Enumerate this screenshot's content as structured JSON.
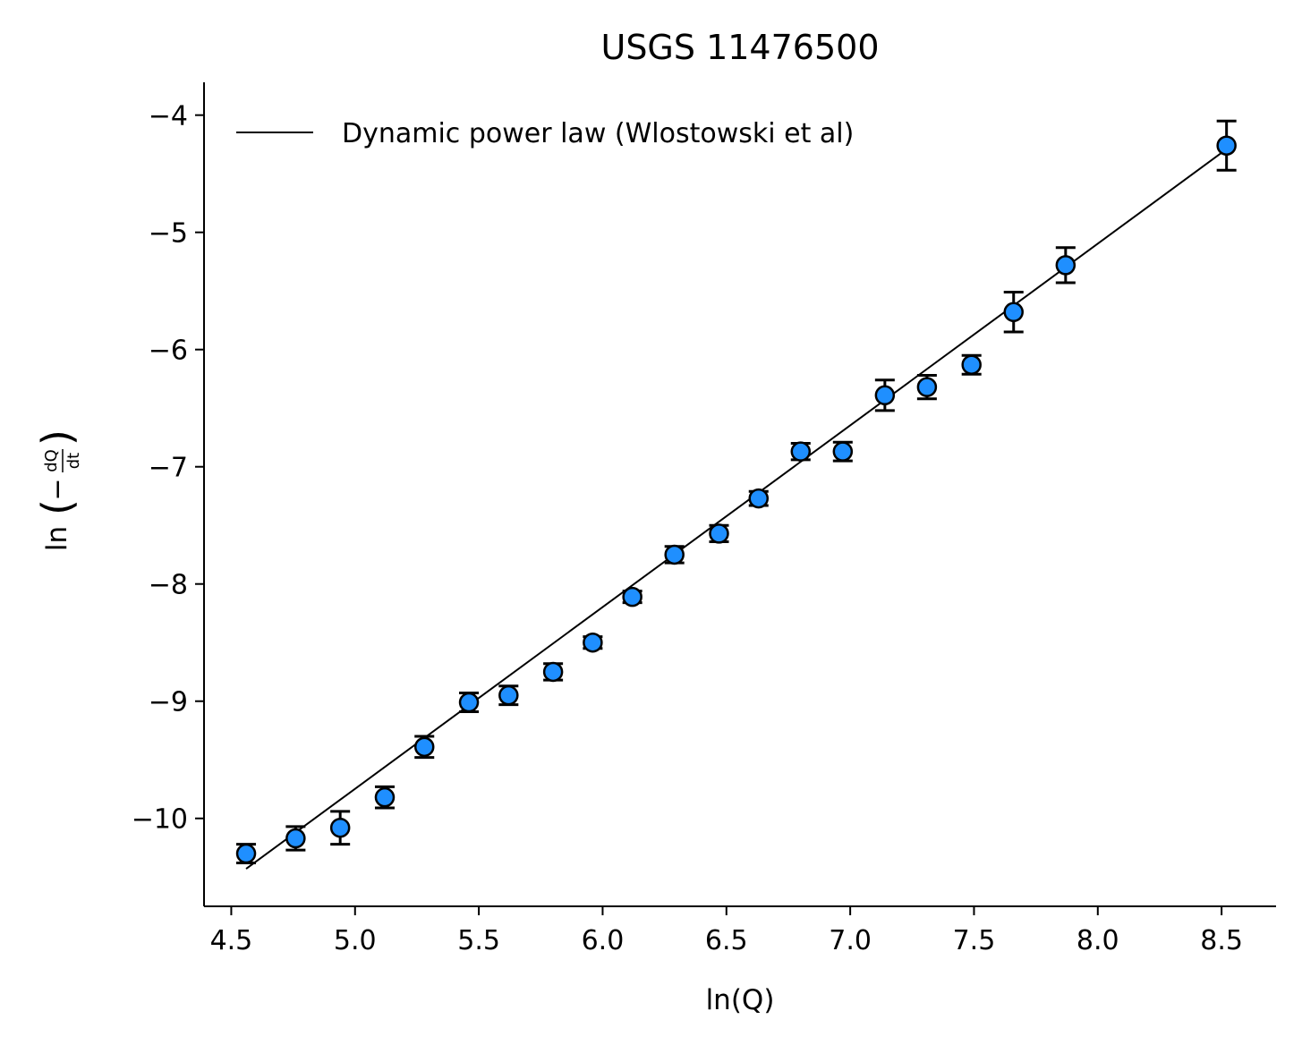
{
  "chart_data": {
    "type": "scatter",
    "title": "USGS 11476500",
    "xlabel": "ln(Q)",
    "ylabel": {
      "prefix": "ln",
      "frac_num": "dQ",
      "frac_den": "dt"
    },
    "xlim": [
      4.39,
      8.72
    ],
    "ylim": [
      -10.75,
      -3.72
    ],
    "xticks": [
      4.5,
      5.0,
      5.5,
      6.0,
      6.5,
      7.0,
      7.5,
      8.0,
      8.5
    ],
    "xtick_labels": [
      "4.5",
      "5.0",
      "5.5",
      "6.0",
      "6.5",
      "7.0",
      "7.5",
      "8.0",
      "8.5"
    ],
    "yticks": [
      -10,
      -9,
      -8,
      -7,
      -6,
      -5,
      -4
    ],
    "ytick_labels": [
      "−10",
      "−9",
      "−8",
      "−7",
      "−6",
      "−5",
      "−4"
    ],
    "grid": false,
    "legend_position": "top-left",
    "colors": {
      "marker_fill": "#1f8fff",
      "marker_edge": "#000000",
      "errorbar": "#000000",
      "fit_line": "#000000"
    },
    "series": [
      {
        "kind": "errorbar-scatter",
        "x": [
          4.56,
          4.76,
          4.94,
          5.12,
          5.28,
          5.46,
          5.62,
          5.8,
          5.96,
          6.12,
          6.29,
          6.47,
          6.63,
          6.8,
          6.97,
          7.14,
          7.31,
          7.49,
          7.66,
          7.87,
          8.52
        ],
        "y": [
          -10.3,
          -10.17,
          -10.08,
          -9.82,
          -9.39,
          -9.01,
          -8.95,
          -8.75,
          -8.5,
          -8.11,
          -7.75,
          -7.57,
          -7.27,
          -6.87,
          -6.87,
          -6.39,
          -6.32,
          -6.13,
          -5.68,
          -5.28,
          -4.26
        ],
        "yerr": [
          0.08,
          0.1,
          0.14,
          0.09,
          0.09,
          0.08,
          0.08,
          0.07,
          0.05,
          0.05,
          0.07,
          0.07,
          0.06,
          0.07,
          0.08,
          0.13,
          0.1,
          0.08,
          0.17,
          0.15,
          0.21
        ]
      },
      {
        "kind": "line",
        "name": "Dynamic power law (Wlostowski et al)",
        "x": [
          4.56,
          8.52
        ],
        "y": [
          -10.43,
          -4.29
        ]
      }
    ]
  }
}
